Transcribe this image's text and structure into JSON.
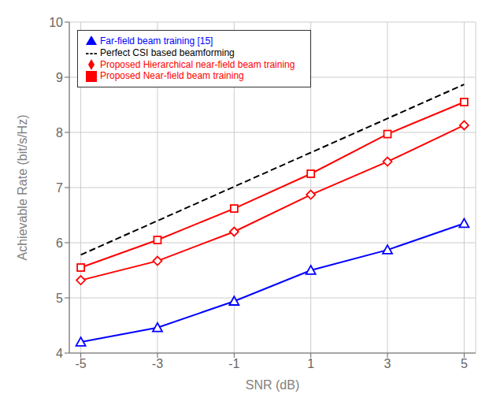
{
  "chart_data": {
    "type": "line",
    "xlabel": "SNR (dB)",
    "ylabel": "Achievable Rate (bit/s/Hz)",
    "xlim": [
      -5.3,
      5.3
    ],
    "xticks": [
      -5,
      -3,
      -1,
      1,
      3,
      5
    ],
    "ylim": [
      4.0,
      10.0
    ],
    "yticks": [
      4,
      5,
      6,
      7,
      8,
      9,
      10
    ],
    "grid": true,
    "legend": "upper left",
    "series": [
      {
        "name": "Far-field beam training [15]",
        "color": "#0000FF",
        "marker": "triangle",
        "line_style": "solid",
        "x": [
          -5,
          -3,
          -1,
          1,
          3,
          5
        ],
        "values": [
          4.2,
          4.46,
          4.94,
          5.5,
          5.87,
          6.35
        ]
      },
      {
        "name": "Proposed Near-field beam training",
        "color": "#FF0000",
        "marker": "square",
        "line_style": "solid",
        "x": [
          -5,
          -3,
          -1,
          1,
          3,
          5
        ],
        "values": [
          5.55,
          6.05,
          6.62,
          7.25,
          7.97,
          8.55
        ]
      },
      {
        "name": "Proposed Hierarchical near-field beam training",
        "color": "#FF0000",
        "marker": "diamond",
        "line_style": "solid",
        "x": [
          -5,
          -3,
          -1,
          1,
          3,
          5
        ],
        "values": [
          5.32,
          5.67,
          6.2,
          6.87,
          7.47,
          8.13
        ]
      },
      {
        "name": "Perfect CSI based beamforming",
        "color": "#000000",
        "marker": "none",
        "line_style": "dashed",
        "x": [
          -5,
          5
        ],
        "values": [
          5.78,
          8.87
        ]
      }
    ]
  }
}
